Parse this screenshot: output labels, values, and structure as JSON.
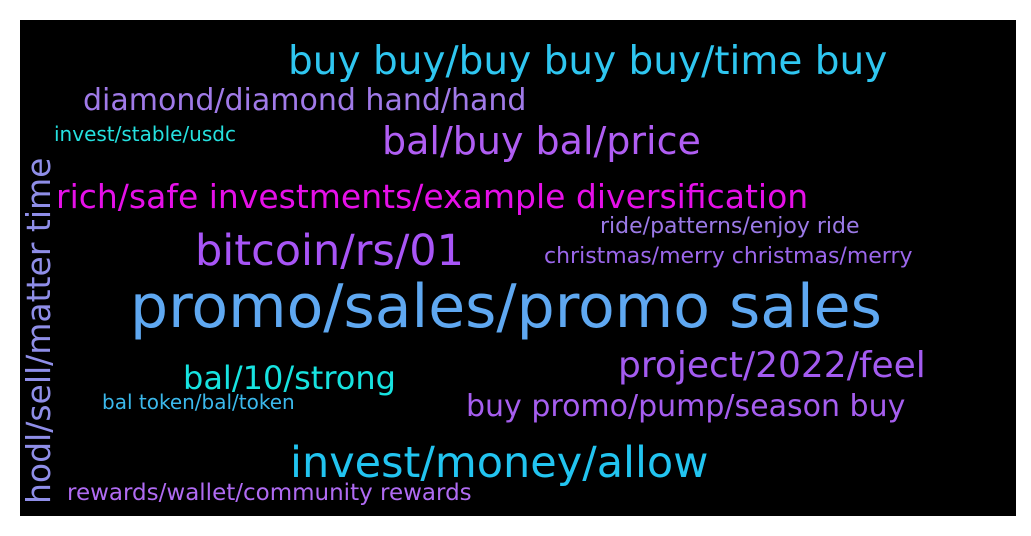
{
  "words": [
    {
      "text": "buy buy/buy buy buy/time buy",
      "color": "#2fc6f0"
    },
    {
      "text": "diamond/diamond hand/hand",
      "color": "#a07ae8"
    },
    {
      "text": "invest/stable/usdc",
      "color": "#25e0df"
    },
    {
      "text": "bal/buy bal/price",
      "color": "#b05ef3"
    },
    {
      "text": "rich/safe investments/example diversification",
      "color": "#e510e8"
    },
    {
      "text": "ride/patterns/enjoy ride",
      "color": "#9b7ae6"
    },
    {
      "text": "bitcoin/rs/01",
      "color": "#a855f7"
    },
    {
      "text": "christmas/merry christmas/merry",
      "color": "#9b67eb"
    },
    {
      "text": "promo/sales/promo sales",
      "color": "#5fa8f1"
    },
    {
      "text": "project/2022/feel",
      "color": "#a35bf0"
    },
    {
      "text": "bal/10/strong",
      "color": "#17e3e0"
    },
    {
      "text": "bal token/bal/token",
      "color": "#3bb9ec"
    },
    {
      "text": "buy promo/pump/season buy",
      "color": "#a65eef"
    },
    {
      "text": "invest/money/allow",
      "color": "#22c4f0"
    },
    {
      "text": "rewards/wallet/community rewards",
      "color": "#b06bf3"
    },
    {
      "text": "hodl/sell/matter time",
      "color": "#8f8ee8"
    }
  ],
  "background_color": "#000000"
}
